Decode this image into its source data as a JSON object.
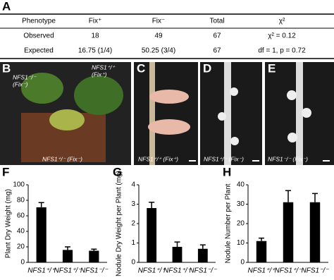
{
  "panel_labels": [
    "A",
    "B",
    "C",
    "D",
    "E",
    "F",
    "G",
    "H"
  ],
  "table": {
    "header": [
      "Phenotype",
      "Fix⁺",
      "Fix⁻",
      "Total",
      "χ²"
    ],
    "rows": [
      [
        "Observed",
        18,
        49,
        67,
        "χ² = 0.12"
      ],
      [
        "Expected",
        "16.75 (1/4)",
        "50.25 (3/4)",
        67,
        "df = 1, p = 0.72"
      ]
    ]
  },
  "photos": [
    {
      "labels": [
        [
          "NFS1⁻/⁻",
          "(Fix⁻)"
        ],
        [
          "NFS1⁺/⁺",
          "(Fix⁺)"
        ],
        [
          "NFS1⁺/⁻ (Fix⁻)"
        ]
      ]
    },
    {
      "labels": [
        [
          "NFS1⁺/⁺ (Fix⁺)"
        ]
      ]
    },
    {
      "labels": [
        [
          "NFS1⁺/⁻ (Fix⁻)"
        ]
      ]
    },
    {
      "labels": [
        [
          "NFS1⁻/⁻ (Fix⁻)"
        ]
      ]
    }
  ],
  "chart_data": [
    {
      "type": "bar",
      "ylabel": "Plant Dry Weight (mg)",
      "categories": [
        "NFS1⁺/⁺",
        "NFS1⁺/⁻",
        "NFS1⁻/⁻"
      ],
      "values": [
        71,
        16,
        15
      ],
      "errors": [
        6,
        4,
        2
      ],
      "color": "#000000",
      "ylim": [
        0,
        100
      ],
      "yticks": [
        0,
        20,
        40,
        60,
        80,
        100
      ]
    },
    {
      "type": "bar",
      "ylabel": "Nodule Dry Weight per Plant (mg)",
      "categories": [
        "NFS1⁺/⁺",
        "NFS1⁺/⁻",
        "NFS1⁻/⁻"
      ],
      "values": [
        2.8,
        0.8,
        0.7
      ],
      "errors": [
        0.3,
        0.25,
        0.2
      ],
      "color": "#000000",
      "ylim": [
        0,
        4
      ],
      "yticks": [
        0,
        1,
        2,
        3,
        4
      ]
    },
    {
      "type": "bar",
      "ylabel": "Nodule Number per Plant",
      "categories": [
        "NFS1⁺/⁺",
        "NFS1⁺/⁻",
        "NFS1⁻/⁻"
      ],
      "values": [
        11,
        31,
        31
      ],
      "errors": [
        1.5,
        6,
        4.5
      ],
      "color": "#000000",
      "ylim": [
        0,
        40
      ],
      "yticks": [
        0,
        10,
        20,
        30,
        40
      ]
    }
  ]
}
